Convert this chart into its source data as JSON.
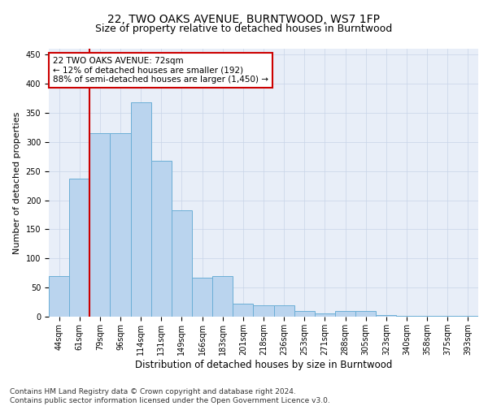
{
  "title": "22, TWO OAKS AVENUE, BURNTWOOD, WS7 1FP",
  "subtitle": "Size of property relative to detached houses in Burntwood",
  "xlabel": "Distribution of detached houses by size in Burntwood",
  "ylabel": "Number of detached properties",
  "categories": [
    "44sqm",
    "61sqm",
    "79sqm",
    "96sqm",
    "114sqm",
    "131sqm",
    "149sqm",
    "166sqm",
    "183sqm",
    "201sqm",
    "218sqm",
    "236sqm",
    "253sqm",
    "271sqm",
    "288sqm",
    "305sqm",
    "323sqm",
    "340sqm",
    "358sqm",
    "375sqm",
    "393sqm"
  ],
  "values": [
    70,
    237,
    315,
    315,
    368,
    268,
    182,
    67,
    70,
    23,
    20,
    20,
    10,
    5,
    10,
    10,
    3,
    1,
    1,
    1,
    1
  ],
  "bar_color": "#bad4ee",
  "bar_edge_color": "#6baed6",
  "red_line_x": 1.5,
  "annotation_text": "22 TWO OAKS AVENUE: 72sqm\n← 12% of detached houses are smaller (192)\n88% of semi-detached houses are larger (1,450) →",
  "annotation_box_color": "#ffffff",
  "annotation_box_edge": "#cc0000",
  "red_line_color": "#cc0000",
  "ylim": [
    0,
    460
  ],
  "yticks": [
    0,
    50,
    100,
    150,
    200,
    250,
    300,
    350,
    400,
    450
  ],
  "footnote": "Contains HM Land Registry data © Crown copyright and database right 2024.\nContains public sector information licensed under the Open Government Licence v3.0.",
  "title_fontsize": 10,
  "subtitle_fontsize": 9,
  "xlabel_fontsize": 8.5,
  "ylabel_fontsize": 8,
  "tick_fontsize": 7,
  "annotation_fontsize": 7.5,
  "footnote_fontsize": 6.5
}
